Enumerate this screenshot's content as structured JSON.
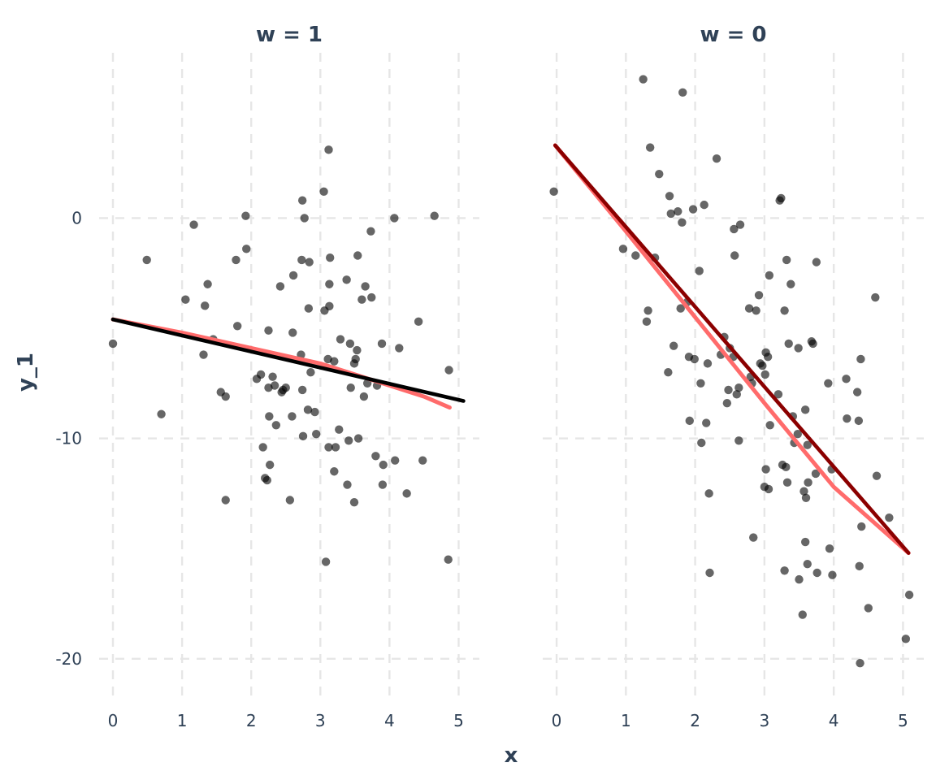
{
  "chart_data": {
    "type": "scatter",
    "xlabel": "x",
    "ylabel": "y_1",
    "xlim": [
      -0.2,
      5.3
    ],
    "ylim": [
      -22,
      7.5
    ],
    "xticks": [
      0,
      1,
      2,
      3,
      4,
      5
    ],
    "yticks": [
      0,
      -10,
      -20
    ],
    "grid": true,
    "colors": {
      "points": "#000000",
      "smooth": "#ff6b6b",
      "linear_w1": "#000000",
      "linear_w0": "#8b0000",
      "text": "#2f4156",
      "grid": "#e6e6e6"
    },
    "panels": [
      {
        "title": "w = 1",
        "points": [
          [
            0.0,
            -5.7
          ],
          [
            0.49,
            -1.9
          ],
          [
            0.7,
            -8.9
          ],
          [
            1.05,
            -3.7
          ],
          [
            1.17,
            -0.3
          ],
          [
            1.31,
            -6.2
          ],
          [
            1.33,
            -3.98
          ],
          [
            1.37,
            -3.0
          ],
          [
            1.45,
            -5.5
          ],
          [
            1.56,
            -7.9
          ],
          [
            1.63,
            -8.1
          ],
          [
            1.63,
            -12.8
          ],
          [
            1.78,
            -1.9
          ],
          [
            1.8,
            -4.9
          ],
          [
            1.92,
            0.1
          ],
          [
            1.93,
            -1.4
          ],
          [
            2.08,
            -7.3
          ],
          [
            2.14,
            -7.1
          ],
          [
            2.17,
            -10.4
          ],
          [
            2.2,
            -11.8
          ],
          [
            2.23,
            -11.9
          ],
          [
            2.25,
            -5.1
          ],
          [
            2.25,
            -7.7
          ],
          [
            2.26,
            -9.0
          ],
          [
            2.27,
            -11.2
          ],
          [
            2.31,
            -7.2
          ],
          [
            2.34,
            -7.6
          ],
          [
            2.36,
            -9.4
          ],
          [
            2.42,
            -3.1
          ],
          [
            2.44,
            -7.9
          ],
          [
            2.46,
            -7.8
          ],
          [
            2.5,
            -7.7
          ],
          [
            2.56,
            -12.8
          ],
          [
            2.59,
            -9.0
          ],
          [
            2.6,
            -5.2
          ],
          [
            2.61,
            -2.6
          ],
          [
            2.72,
            -6.2
          ],
          [
            2.73,
            -1.9
          ],
          [
            2.74,
            -7.8
          ],
          [
            2.74,
            0.8
          ],
          [
            2.75,
            -9.9
          ],
          [
            2.77,
            0.0
          ],
          [
            2.82,
            -8.7
          ],
          [
            2.83,
            -4.1
          ],
          [
            2.84,
            -2.0
          ],
          [
            2.86,
            -7.0
          ],
          [
            2.92,
            -8.8
          ],
          [
            2.94,
            -9.8
          ],
          [
            3.05,
            1.2
          ],
          [
            3.06,
            -4.2
          ],
          [
            3.08,
            -15.6
          ],
          [
            3.11,
            -6.4
          ],
          [
            3.12,
            -10.4
          ],
          [
            3.12,
            3.1
          ],
          [
            3.13,
            -4.0
          ],
          [
            3.13,
            -3.0
          ],
          [
            3.14,
            -1.8
          ],
          [
            3.2,
            -6.5
          ],
          [
            3.2,
            -11.5
          ],
          [
            3.22,
            -10.4
          ],
          [
            3.27,
            -9.6
          ],
          [
            3.29,
            -5.5
          ],
          [
            3.38,
            -2.8
          ],
          [
            3.39,
            -12.1
          ],
          [
            3.41,
            -10.1
          ],
          [
            3.43,
            -5.7
          ],
          [
            3.44,
            -7.7
          ],
          [
            3.49,
            -6.6
          ],
          [
            3.49,
            -12.9
          ],
          [
            3.51,
            -6.4
          ],
          [
            3.53,
            -6.0
          ],
          [
            3.54,
            -1.7
          ],
          [
            3.55,
            -10.0
          ],
          [
            3.6,
            -3.7
          ],
          [
            3.63,
            -8.1
          ],
          [
            3.65,
            -3.1
          ],
          [
            3.68,
            -7.5
          ],
          [
            3.73,
            -0.6
          ],
          [
            3.74,
            -3.6
          ],
          [
            3.8,
            -10.8
          ],
          [
            3.82,
            -7.6
          ],
          [
            3.89,
            -5.7
          ],
          [
            3.9,
            -12.1
          ],
          [
            3.91,
            -11.2
          ],
          [
            4.07,
            0.0
          ],
          [
            4.08,
            -11.0
          ],
          [
            4.14,
            -5.9
          ],
          [
            4.25,
            -12.5
          ],
          [
            4.42,
            -4.7
          ],
          [
            4.48,
            -11.0
          ],
          [
            4.65,
            0.1
          ],
          [
            4.85,
            -15.5
          ],
          [
            4.86,
            -6.9
          ]
        ],
        "smooth": [
          [
            0.0,
            -4.6
          ],
          [
            1.0,
            -5.2
          ],
          [
            2.0,
            -5.9
          ],
          [
            3.0,
            -6.6
          ],
          [
            3.5,
            -7.1
          ],
          [
            4.0,
            -7.6
          ],
          [
            4.5,
            -8.1
          ],
          [
            4.87,
            -8.6
          ]
        ],
        "linear": [
          [
            0.0,
            -4.6
          ],
          [
            5.07,
            -8.3
          ]
        ],
        "linear_color_key": "linear_w1"
      },
      {
        "title": "w = 0",
        "points": [
          [
            -0.04,
            1.2
          ],
          [
            0.96,
            -1.4
          ],
          [
            1.14,
            -1.7
          ],
          [
            1.25,
            6.3
          ],
          [
            1.3,
            -4.7
          ],
          [
            1.32,
            -4.2
          ],
          [
            1.35,
            3.2
          ],
          [
            1.42,
            -1.8
          ],
          [
            1.48,
            2.0
          ],
          [
            1.61,
            -7.0
          ],
          [
            1.63,
            1.0
          ],
          [
            1.65,
            0.2
          ],
          [
            1.69,
            -5.8
          ],
          [
            1.75,
            0.3
          ],
          [
            1.79,
            -4.1
          ],
          [
            1.81,
            -0.2
          ],
          [
            1.82,
            5.7
          ],
          [
            1.89,
            -3.8
          ],
          [
            1.91,
            -6.3
          ],
          [
            1.92,
            -9.2
          ],
          [
            1.97,
            0.4
          ],
          [
            1.99,
            -6.4
          ],
          [
            2.06,
            -2.4
          ],
          [
            2.08,
            -7.5
          ],
          [
            2.09,
            -10.2
          ],
          [
            2.13,
            0.6
          ],
          [
            2.16,
            -9.3
          ],
          [
            2.18,
            -6.6
          ],
          [
            2.2,
            -12.5
          ],
          [
            2.21,
            -16.1
          ],
          [
            2.31,
            2.7
          ],
          [
            2.37,
            -6.2
          ],
          [
            2.42,
            -5.4
          ],
          [
            2.46,
            -8.4
          ],
          [
            2.48,
            -7.8
          ],
          [
            2.5,
            -5.9
          ],
          [
            2.55,
            -6.3
          ],
          [
            2.56,
            -0.5
          ],
          [
            2.57,
            -1.7
          ],
          [
            2.6,
            -8.0
          ],
          [
            2.63,
            -7.7
          ],
          [
            2.63,
            -10.1
          ],
          [
            2.65,
            -0.3
          ],
          [
            2.78,
            -4.1
          ],
          [
            2.8,
            -7.2
          ],
          [
            2.82,
            -7.5
          ],
          [
            2.84,
            -14.5
          ],
          [
            2.88,
            -4.2
          ],
          [
            2.92,
            -3.5
          ],
          [
            2.94,
            -6.6
          ],
          [
            2.97,
            -6.7
          ],
          [
            3.0,
            -12.2
          ],
          [
            3.01,
            -7.1
          ],
          [
            3.02,
            -6.1
          ],
          [
            3.02,
            -11.4
          ],
          [
            3.05,
            -6.3
          ],
          [
            3.06,
            -12.3
          ],
          [
            3.07,
            -2.6
          ],
          [
            3.08,
            -9.4
          ],
          [
            3.2,
            -8.0
          ],
          [
            3.22,
            0.8
          ],
          [
            3.24,
            0.9
          ],
          [
            3.26,
            -11.2
          ],
          [
            3.29,
            -4.2
          ],
          [
            3.29,
            -16.0
          ],
          [
            3.31,
            -11.3
          ],
          [
            3.32,
            -1.9
          ],
          [
            3.33,
            -12.0
          ],
          [
            3.35,
            -5.7
          ],
          [
            3.38,
            -3.0
          ],
          [
            3.41,
            -9.0
          ],
          [
            3.43,
            -10.2
          ],
          [
            3.48,
            -9.8
          ],
          [
            3.49,
            -5.9
          ],
          [
            3.5,
            -16.4
          ],
          [
            3.55,
            -18.0
          ],
          [
            3.57,
            -12.4
          ],
          [
            3.59,
            -14.7
          ],
          [
            3.59,
            -8.7
          ],
          [
            3.6,
            -12.7
          ],
          [
            3.62,
            -10.3
          ],
          [
            3.62,
            -15.7
          ],
          [
            3.63,
            -12.0
          ],
          [
            3.68,
            -5.6
          ],
          [
            3.7,
            -5.7
          ],
          [
            3.74,
            -11.6
          ],
          [
            3.75,
            -2.0
          ],
          [
            3.76,
            -16.1
          ],
          [
            3.92,
            -7.5
          ],
          [
            3.94,
            -15.0
          ],
          [
            3.97,
            -11.4
          ],
          [
            3.98,
            -16.2
          ],
          [
            4.18,
            -7.3
          ],
          [
            4.19,
            -9.1
          ],
          [
            4.34,
            -7.9
          ],
          [
            4.36,
            -9.2
          ],
          [
            4.37,
            -15.8
          ],
          [
            4.38,
            -20.2
          ],
          [
            4.39,
            -6.4
          ],
          [
            4.4,
            -14.0
          ],
          [
            4.5,
            -17.7
          ],
          [
            4.6,
            -3.6
          ],
          [
            4.62,
            -11.7
          ],
          [
            4.8,
            -13.6
          ],
          [
            5.04,
            -19.1
          ],
          [
            5.09,
            -17.1
          ]
        ],
        "smooth": [
          [
            -0.02,
            3.3
          ],
          [
            1.0,
            -0.6
          ],
          [
            2.0,
            -4.5
          ],
          [
            3.0,
            -8.4
          ],
          [
            4.0,
            -12.2
          ],
          [
            5.08,
            -15.2
          ]
        ],
        "linear": [
          [
            -0.02,
            3.3
          ],
          [
            5.08,
            -15.2
          ]
        ],
        "linear_color_key": "linear_w0"
      }
    ]
  }
}
